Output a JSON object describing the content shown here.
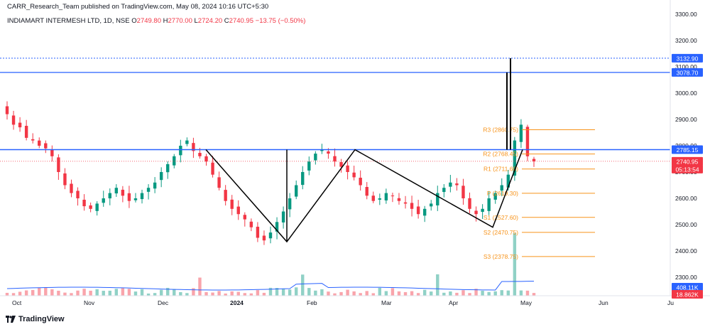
{
  "header": {
    "publisher_line": "CARR_Research_Team published on TradingView.com, May 08, 2024 10:16 UTC+5:30",
    "symbol": "INDIAMART INTERMESH LTD, 1D, NSE",
    "ohlc": {
      "o_label": "O",
      "o_value": "2749.80",
      "h_label": "H",
      "h_value": "2770.00",
      "l_label": "L",
      "l_value": "2724.20",
      "c_label": "C",
      "c_value": "2740.95",
      "change": "−13.75 (−0.50%)"
    }
  },
  "brand": {
    "name": "TradingView"
  },
  "colors": {
    "up": "#089981",
    "down": "#f23645",
    "level_line": "#2962ff",
    "pivot": "#f7931a",
    "pattern": "#000000",
    "volume_ma": "#2962ff"
  },
  "axis": {
    "y_ticks": [
      "3300.00",
      "3200.00",
      "3100.00",
      "3000.00",
      "2900.00",
      "2800.00",
      "2700.00",
      "2600.00",
      "2500.00",
      "2400.00",
      "2300.00"
    ],
    "x_ticks": [
      "Oct",
      "Nov",
      "Dec",
      "2024",
      "Feb",
      "Mar",
      "Apr",
      "May",
      "Jun",
      "Ju"
    ]
  },
  "price_tags": {
    "dotted_level": "3132.90",
    "upper_level": "3078.70",
    "resistance": "2785.15",
    "last_price": "2740.95",
    "countdown": "05:13:54",
    "volume": "408.11K",
    "volume_ma": "18.862K"
  },
  "pivots": {
    "r3": "R3 (2860.75)",
    "r2": "R2 (2768.45)",
    "r1": "R1 (2711.60)",
    "p": "P (2619.30)",
    "s1": "S1 (2527.60)",
    "s2": "S2 (2470.75)",
    "s3": "S3 (2378.75)"
  },
  "chart_data": {
    "type": "candlestick",
    "title": "INDIAMART INTERMESH LTD, 1D, NSE",
    "ylim": [
      2250,
      3320
    ],
    "y_scale": "linear",
    "grid": false,
    "x_months": [
      "Oct",
      "Nov",
      "Dec",
      "2024",
      "Feb",
      "Mar",
      "Apr",
      "May",
      "Jun",
      "Ju"
    ],
    "horizontal_levels": [
      3132.9,
      3078.7,
      2785.15
    ],
    "pivot_levels": {
      "R3": 2860.75,
      "R2": 2768.45,
      "R1": 2711.6,
      "P": 2619.3,
      "S1": 2527.6,
      "S2": 2470.75,
      "S3": 2378.75
    },
    "pattern_points": [
      2785,
      2435,
      2785,
      2490,
      2785
    ],
    "close_path": [
      2920,
      2880,
      2870,
      2830,
      2820,
      2800,
      2790,
      2760,
      2700,
      2650,
      2620,
      2600,
      2570,
      2560,
      2580,
      2600,
      2620,
      2640,
      2610,
      2590,
      2600,
      2620,
      2640,
      2660,
      2700,
      2730,
      2760,
      2800,
      2820,
      2780,
      2760,
      2740,
      2690,
      2640,
      2590,
      2560,
      2540,
      2520,
      2490,
      2450,
      2440,
      2470,
      2510,
      2550,
      2600,
      2650,
      2700,
      2740,
      2770,
      2785,
      2770,
      2740,
      2720,
      2700,
      2680,
      2650,
      2610,
      2590,
      2600,
      2620,
      2610,
      2590,
      2580,
      2560,
      2540,
      2560,
      2580,
      2620,
      2640,
      2660,
      2650,
      2600,
      2560,
      2540,
      2560,
      2600,
      2620,
      2650,
      2690,
      2820,
      2880,
      2760,
      2741
    ],
    "last": {
      "open": 2749.8,
      "high": 2770.0,
      "low": 2724.2,
      "close": 2740.95,
      "volume": "408.11K"
    }
  }
}
